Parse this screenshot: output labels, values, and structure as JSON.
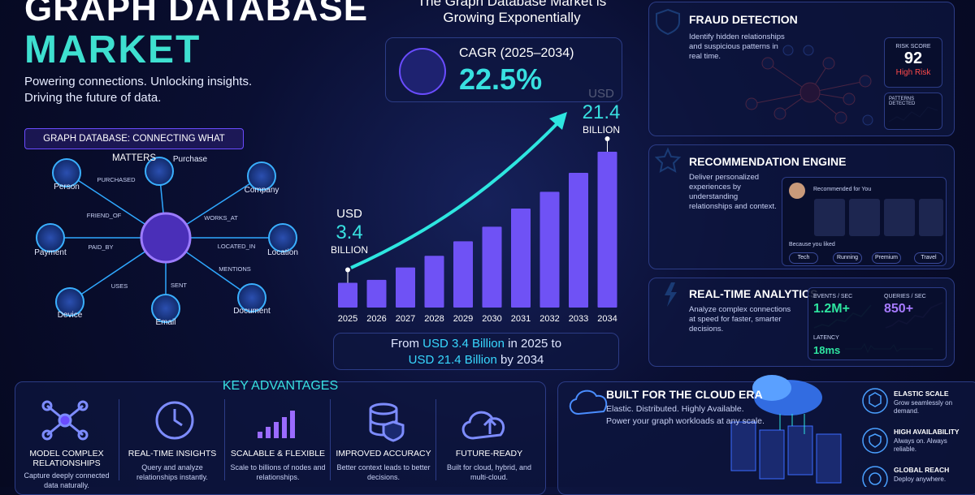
{
  "header": {
    "title_line1": "GRAPH DATABASE",
    "title_line2": "MARKET",
    "tagline_1": "Powering connections. Unlocking insights.",
    "tagline_2": "Driving the future of data."
  },
  "graph": {
    "title": "GRAPH DATABASE: CONNECTING WHAT MATTERS",
    "nodes": [
      "Person",
      "Purchase",
      "Company",
      "Location",
      "Document",
      "Email",
      "Device",
      "Payment"
    ],
    "edges": [
      "PURCHASED",
      "FRIEND_OF",
      "WORKS_AT",
      "LOCATED_IN",
      "MENTIONS",
      "SENT",
      "USES",
      "PAID_BY"
    ]
  },
  "chart_data": {
    "type": "bar",
    "title": "The Graph Database Market is Growing Exponentially",
    "categories": [
      "2025",
      "2026",
      "2027",
      "2028",
      "2029",
      "2030",
      "2031",
      "2032",
      "2033",
      "2034"
    ],
    "values": [
      3.4,
      3.8,
      5.5,
      7.1,
      9.1,
      11.1,
      13.6,
      15.9,
      18.5,
      21.4
    ],
    "label_prefix": "USD",
    "label_suffix": "BILLION",
    "color": "#6f52f5"
  },
  "cagr": {
    "label": "CAGR (2025–2034)",
    "value": "22.5%"
  },
  "summary": {
    "parts": [
      "From",
      "USD 3.4 Billion",
      "in 2025 to",
      "USD 21.4 Billion",
      "by 2034"
    ]
  },
  "fraud": {
    "title": "FRAUD DETECTION",
    "description": "Identify hidden relationships and suspicious patterns in real time.",
    "risk_label": "RISK SCORE",
    "risk_value": "92",
    "risk_level": "High Risk",
    "patterns_label": "PATTERNS DETECTED"
  },
  "recommendation": {
    "title": "RECOMMENDATION ENGINE",
    "description": "Deliver personalized experiences by understanding relationships and context.",
    "panel_title": "Recommended for You",
    "because": "Because you liked",
    "tags": [
      "Tech",
      "Running",
      "Premium",
      "Travel"
    ]
  },
  "analytics": {
    "title": "REAL-TIME ANALYTICS",
    "description": "Analyze complex connections at speed for faster, smarter decisions.",
    "metrics": [
      {
        "label": "EVENTS / SEC",
        "value": "1.2M+"
      },
      {
        "label": "QUERIES / SEC",
        "value": "850+"
      },
      {
        "label": "LATENCY",
        "value": "18ms"
      }
    ]
  },
  "advantages": {
    "title": "KEY ADVANTAGES",
    "items": [
      {
        "title": "MODEL COMPLEX RELATIONSHIPS",
        "description": "Capture deeply connected data naturally."
      },
      {
        "title": "REAL-TIME INSIGHTS",
        "description": "Query and analyze relationships instantly."
      },
      {
        "title": "SCALABLE & FLEXIBLE",
        "description": "Scale to billions of nodes and relationships."
      },
      {
        "title": "IMPROVED ACCURACY",
        "description": "Better context leads to better decisions."
      },
      {
        "title": "FUTURE-READY",
        "description": "Built for cloud, hybrid, and multi-cloud."
      }
    ]
  },
  "cloud": {
    "title": "BUILT FOR THE CLOUD ERA",
    "line_1": "Elastic. Distributed. Highly Available.",
    "line_2": "Power your graph workloads at any scale.",
    "features": [
      {
        "title": "ELASTIC SCALE",
        "description": "Grow seamlessly on demand."
      },
      {
        "title": "HIGH AVAILABILITY",
        "description": "Always on. Always reliable."
      },
      {
        "title": "GLOBAL REACH",
        "description": "Deploy anywhere."
      }
    ]
  }
}
